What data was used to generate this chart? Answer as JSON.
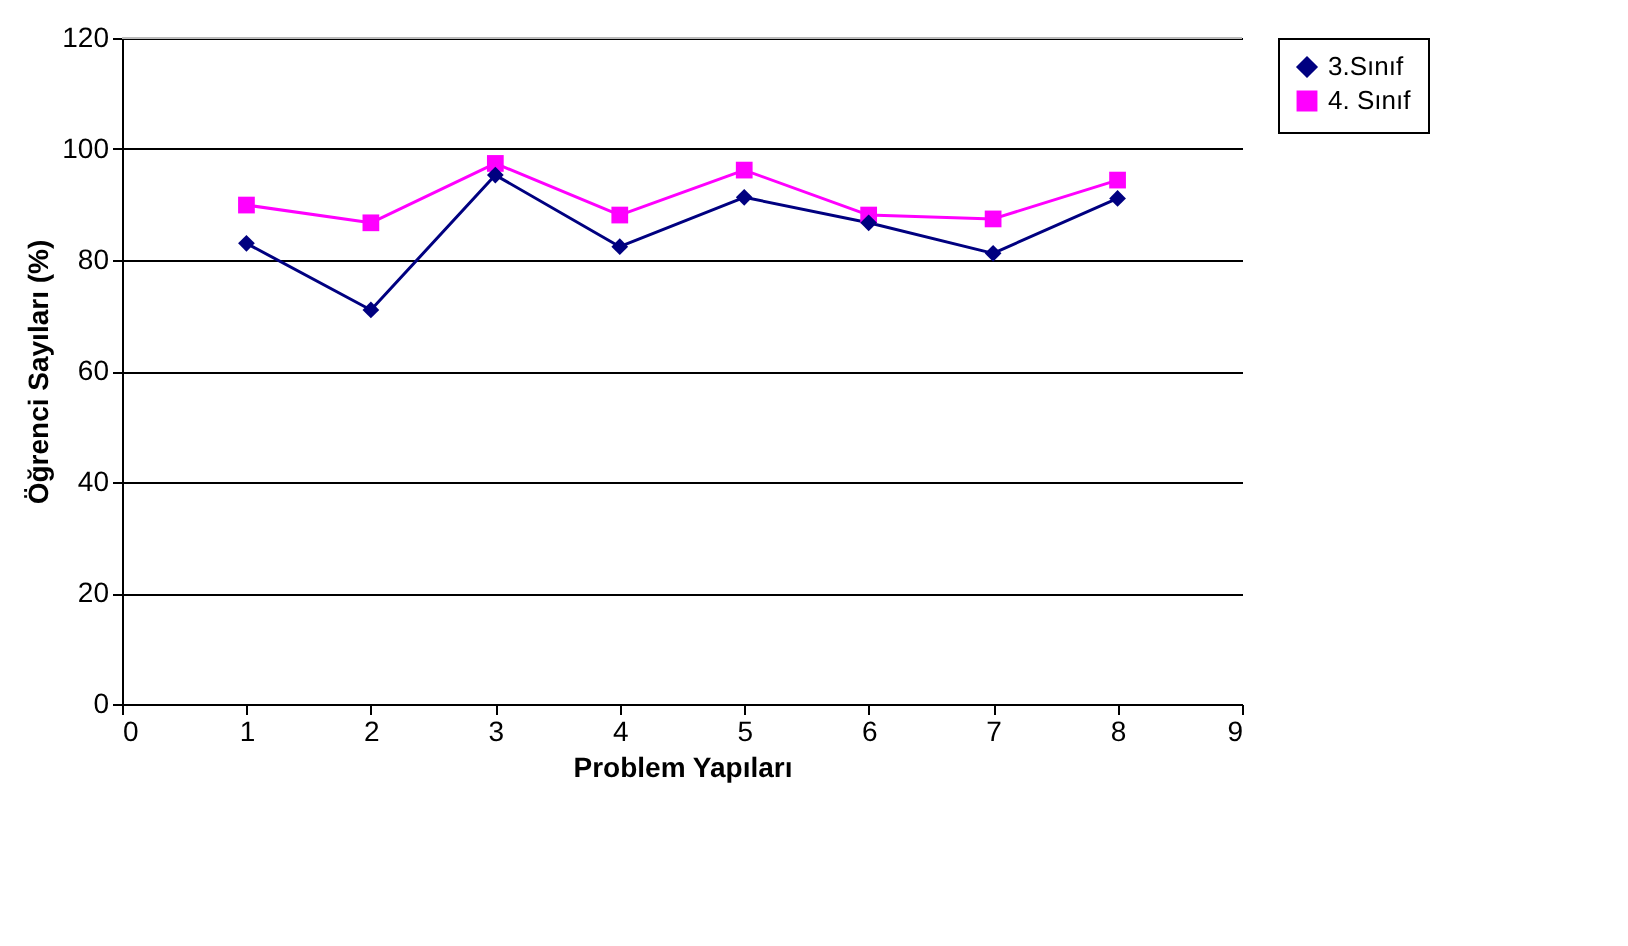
{
  "chart_data": {
    "type": "line",
    "xlabel": "Problem Yapıları",
    "ylabel": "Öğrenci Sayıları (%)",
    "x": [
      1,
      2,
      3,
      4,
      5,
      6,
      7,
      8
    ],
    "series": [
      {
        "name": "3.Sınıf",
        "color": "#000080",
        "marker": "diamond",
        "values": [
          83,
          71,
          95.3,
          82.4,
          91.3,
          86.7,
          81.2,
          91.1
        ]
      },
      {
        "name": "4. Sınıf",
        "color": "#ff00ff",
        "marker": "square",
        "values": [
          89.9,
          86.7,
          97.4,
          88.1,
          96.2,
          88.1,
          87.4,
          94.4
        ]
      }
    ],
    "xlim": [
      0,
      9
    ],
    "xticks": [
      0,
      1,
      2,
      3,
      4,
      5,
      6,
      7,
      8,
      9
    ],
    "ylim": [
      0,
      120
    ],
    "yticks": [
      0,
      20,
      40,
      60,
      80,
      100,
      120
    ],
    "grid": "y",
    "legend": "right",
    "line_style": "solid"
  }
}
